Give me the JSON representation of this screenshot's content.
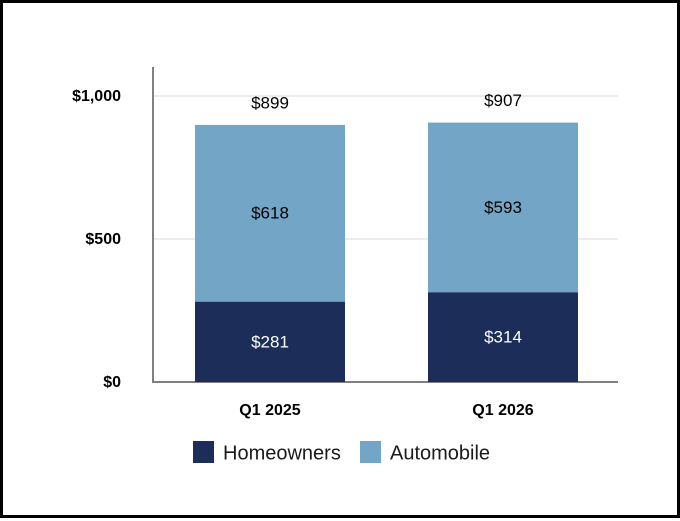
{
  "chart_data": {
    "type": "bar",
    "stacked": true,
    "categories": [
      "Q1 2025",
      "Q1 2026"
    ],
    "series": [
      {
        "name": "Homeowners",
        "values": [
          281,
          314
        ],
        "color": "#1c2d5a",
        "label_color": "#ffffff"
      },
      {
        "name": "Automobile",
        "values": [
          618,
          593
        ],
        "color": "#73a6c6",
        "label_color": "#000000"
      }
    ],
    "totals": [
      899,
      907
    ],
    "data_labels": {
      "series": [
        [
          "$281",
          "$314"
        ],
        [
          "$618",
          "$593"
        ]
      ],
      "totals": [
        "$899",
        "$907"
      ]
    },
    "title": "",
    "xlabel": "",
    "ylabel": "",
    "ylim": [
      0,
      1000
    ],
    "yticks": [
      0,
      500,
      1000
    ],
    "ytick_labels": [
      "$0",
      "$500",
      "$1,000"
    ],
    "grid": true,
    "legend": "bottom"
  }
}
